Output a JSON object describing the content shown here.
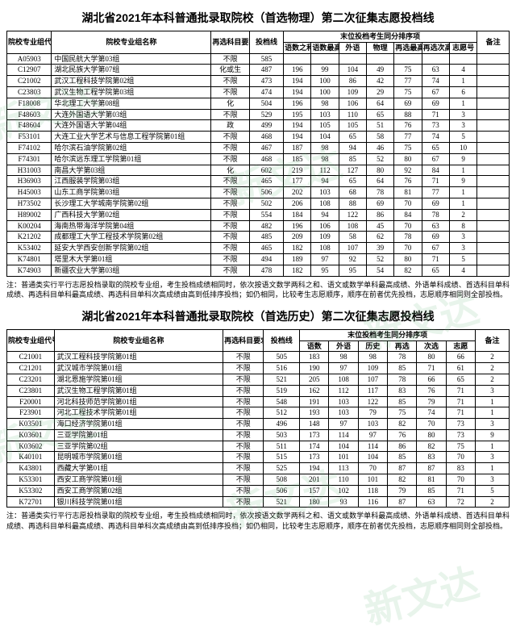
{
  "watermark_text": "新文达",
  "watermark_color": "rgba(100,180,120,0.15)",
  "table1": {
    "title": "湖北省2021年本科普通批录取院校（首选物理）第二次征集志愿投档线",
    "header_group": "末位投档考生同分排序项",
    "columns": [
      "院校专业组代号",
      "院校专业组名称",
      "再选科目要求",
      "投档线",
      "语数之和",
      "语数最高",
      "外语",
      "物理",
      "再选最高",
      "再选次高",
      "志愿号",
      "备注"
    ],
    "rows": [
      [
        "A05903",
        "中国民航大学第03组",
        "不限",
        "585",
        "",
        "",
        "",
        "",
        "",
        "",
        "",
        ""
      ],
      [
        "C12907",
        "湖北民族大学第07组",
        "化或生",
        "487",
        "196",
        "99",
        "104",
        "49",
        "75",
        "63",
        "4",
        ""
      ],
      [
        "C21002",
        "武汉工程科技学院第02组",
        "不限",
        "473",
        "194",
        "100",
        "86",
        "42",
        "77",
        "74",
        "1",
        ""
      ],
      [
        "C23803",
        "武汉生物工程学院第03组",
        "不限",
        "474",
        "194",
        "100",
        "109",
        "29",
        "75",
        "67",
        "6",
        ""
      ],
      [
        "F18008",
        "华北理工大学第08组",
        "化",
        "504",
        "196",
        "98",
        "106",
        "64",
        "69",
        "69",
        "1",
        ""
      ],
      [
        "F48603",
        "大连外国语大学第03组",
        "不限",
        "529",
        "195",
        "103",
        "110",
        "65",
        "88",
        "71",
        "3",
        ""
      ],
      [
        "F48604",
        "大连外国语大学第04组",
        "政",
        "499",
        "194",
        "105",
        "105",
        "51",
        "76",
        "73",
        "3",
        ""
      ],
      [
        "F53101",
        "大连工业大学艺术与信息工程学院第01组",
        "不限",
        "468",
        "194",
        "104",
        "65",
        "58",
        "77",
        "74",
        "5",
        ""
      ],
      [
        "F74102",
        "哈尔滨石油学院第02组",
        "不限",
        "467",
        "187",
        "98",
        "94",
        "46",
        "75",
        "65",
        "10",
        ""
      ],
      [
        "F74301",
        "哈尔滨远东理工学院第01组",
        "不限",
        "468",
        "185",
        "98",
        "85",
        "52",
        "80",
        "67",
        "9",
        ""
      ],
      [
        "H31003",
        "南昌大学第03组",
        "化",
        "602",
        "219",
        "112",
        "127",
        "80",
        "92",
        "84",
        "1",
        ""
      ],
      [
        "H36903",
        "江西服装学院第03组",
        "不限",
        "465",
        "177",
        "94",
        "65",
        "64",
        "76",
        "71",
        "9",
        ""
      ],
      [
        "H45003",
        "山东工商学院第03组",
        "不限",
        "506",
        "202",
        "103",
        "68",
        "78",
        "81",
        "77",
        "1",
        ""
      ],
      [
        "H73502",
        "长沙理工大学城南学院第02组",
        "不限",
        "502",
        "206",
        "108",
        "88",
        "69",
        "70",
        "69",
        "1",
        ""
      ],
      [
        "H89002",
        "广西科技大学第02组",
        "不限",
        "554",
        "184",
        "94",
        "122",
        "86",
        "84",
        "78",
        "2",
        ""
      ],
      [
        "K00204",
        "海南热带海洋学院第04组",
        "不限",
        "482",
        "196",
        "106",
        "108",
        "45",
        "70",
        "63",
        "8",
        ""
      ],
      [
        "K21202",
        "成都理工大学工程技术学院第02组",
        "不限",
        "485",
        "209",
        "109",
        "58",
        "62",
        "78",
        "69",
        "3",
        ""
      ],
      [
        "K53402",
        "延安大学西安创新学院第02组",
        "不限",
        "465",
        "182",
        "108",
        "107",
        "39",
        "70",
        "67",
        "3",
        ""
      ],
      [
        "K74801",
        "塔里木大学第01组",
        "不限",
        "494",
        "189",
        "97",
        "92",
        "52",
        "80",
        "71",
        "5",
        ""
      ],
      [
        "K74903",
        "新疆农业大学第03组",
        "不限",
        "478",
        "182",
        "95",
        "95",
        "54",
        "82",
        "65",
        "4",
        ""
      ]
    ],
    "note": "注：普通类实行平行志愿投档录取的院校专业组，考生投档成绩相同时，依次按语文数学两科之和、语文或数学单科最高成绩、外语单科成绩、首选科目单科成绩、再选科目单科最高成绩、再选科目单科次高成绩由高到低排序投档；如仍相同，比较考生志愿顺序，顺序在前者优先投档，志愿顺序相同则全部投档。"
  },
  "table2": {
    "title": "湖北省2021年本科普通批录取院校（首选历史）第二次征集志愿投档线",
    "header_group": "末位投档考生同分排序项",
    "columns": [
      "院校专业组代号",
      "院校专业组名称",
      "再选科目要求",
      "投档线",
      "语数",
      "外语",
      "历史",
      "再选",
      "次选",
      "志愿",
      "备注"
    ],
    "rows": [
      [
        "C21001",
        "武汉工程科技学院第01组",
        "不限",
        "505",
        "183",
        "98",
        "98",
        "78",
        "80",
        "66",
        "2"
      ],
      [
        "C21201",
        "武汉城市学院第01组",
        "不限",
        "516",
        "190",
        "97",
        "109",
        "85",
        "71",
        "61",
        "2"
      ],
      [
        "C23201",
        "湖北恩施学院第01组",
        "不限",
        "521",
        "205",
        "108",
        "107",
        "78",
        "66",
        "65",
        "2"
      ],
      [
        "C23801",
        "武汉生物工程学院第01组",
        "不限",
        "519",
        "162",
        "112",
        "117",
        "83",
        "76",
        "71",
        "3"
      ],
      [
        "F20001",
        "河北科技师范学院第01组",
        "不限",
        "548",
        "191",
        "103",
        "122",
        "85",
        "79",
        "71",
        "1"
      ],
      [
        "F23901",
        "河北工程技术学院第01组",
        "不限",
        "512",
        "193",
        "103",
        "79",
        "75",
        "74",
        "71",
        "1"
      ],
      [
        "K03501",
        "海口经济学院第01组",
        "不限",
        "496",
        "148",
        "97",
        "103",
        "82",
        "70",
        "73",
        "3"
      ],
      [
        "K03601",
        "三亚学院第01组",
        "不限",
        "503",
        "173",
        "114",
        "97",
        "76",
        "80",
        "73",
        "9"
      ],
      [
        "K03602",
        "三亚学院第02组",
        "不限",
        "511",
        "174",
        "104",
        "114",
        "86",
        "82",
        "75",
        "1"
      ],
      [
        "K40101",
        "昆明城市学院第01组",
        "不限",
        "515",
        "173",
        "101",
        "104",
        "85",
        "83",
        "70",
        "3"
      ],
      [
        "K43801",
        "西藏大学第01组",
        "不限",
        "525",
        "194",
        "113",
        "70",
        "87",
        "87",
        "83",
        "1"
      ],
      [
        "K53301",
        "西安工商学院第01组",
        "不限",
        "508",
        "201",
        "110",
        "101",
        "82",
        "81",
        "70",
        "3"
      ],
      [
        "K53302",
        "西安工商学院第02组",
        "不限",
        "506",
        "157",
        "102",
        "118",
        "79",
        "85",
        "71",
        "5"
      ],
      [
        "K72701",
        "银川科技学院第01组",
        "不限",
        "521",
        "180",
        "93",
        "116",
        "87",
        "63",
        "72",
        "2"
      ]
    ],
    "note": "注：普通类实行平行志愿投档录取的院校专业组，考生投档成绩相同时，依次按语文数学两科之和、语文或数学单科最高成绩、外语单科成绩、首选科目单科成绩、再选科目单科最高成绩、再选科目单科次高成绩由高到低排序投档；如仍相同，比较考生志愿顺序，顺序在前者优先投档，志愿顺序相同则全部投档。"
  }
}
